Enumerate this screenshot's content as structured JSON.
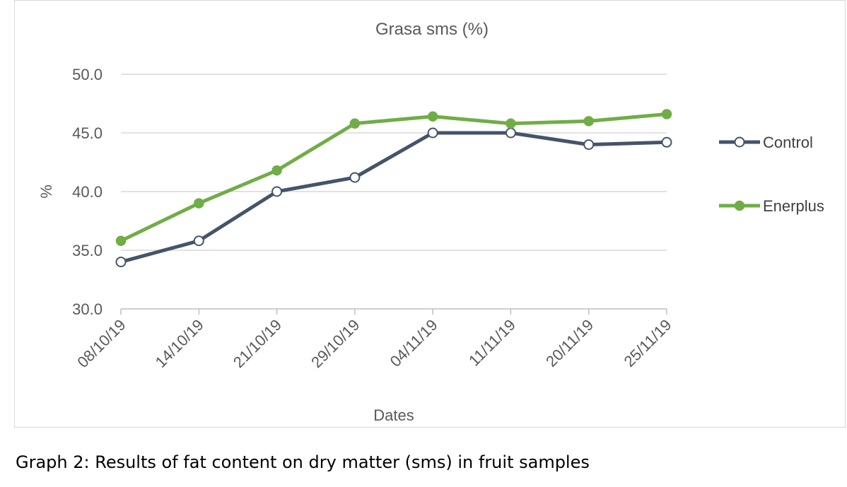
{
  "chart_data": {
    "type": "line",
    "title": "Grasa sms  (%)",
    "xlabel": "Dates",
    "ylabel": "%",
    "categories": [
      "08/10/19",
      "14/10/19",
      "21/10/19",
      "29/10/19",
      "04/11/19",
      "11/11/19",
      "20/11/19",
      "25/11/19"
    ],
    "y_ticks": [
      "30.0",
      "35.0",
      "40.0",
      "45.0",
      "50.0"
    ],
    "ylim": [
      30,
      50
    ],
    "grid": true,
    "legend_position": "right",
    "series": [
      {
        "name": "Control",
        "color": "#44546a",
        "marker": "hollow-circle",
        "values": [
          34.0,
          35.8,
          40.0,
          41.2,
          45.0,
          45.0,
          44.0,
          44.2
        ]
      },
      {
        "name": "Enerplus",
        "color": "#70ad47",
        "marker": "filled-circle",
        "values": [
          35.8,
          39.0,
          41.8,
          45.8,
          46.4,
          45.8,
          46.0,
          46.6
        ]
      }
    ]
  },
  "caption": "Graph 2: Results of fat content on dry matter (sms) in fruit samples"
}
